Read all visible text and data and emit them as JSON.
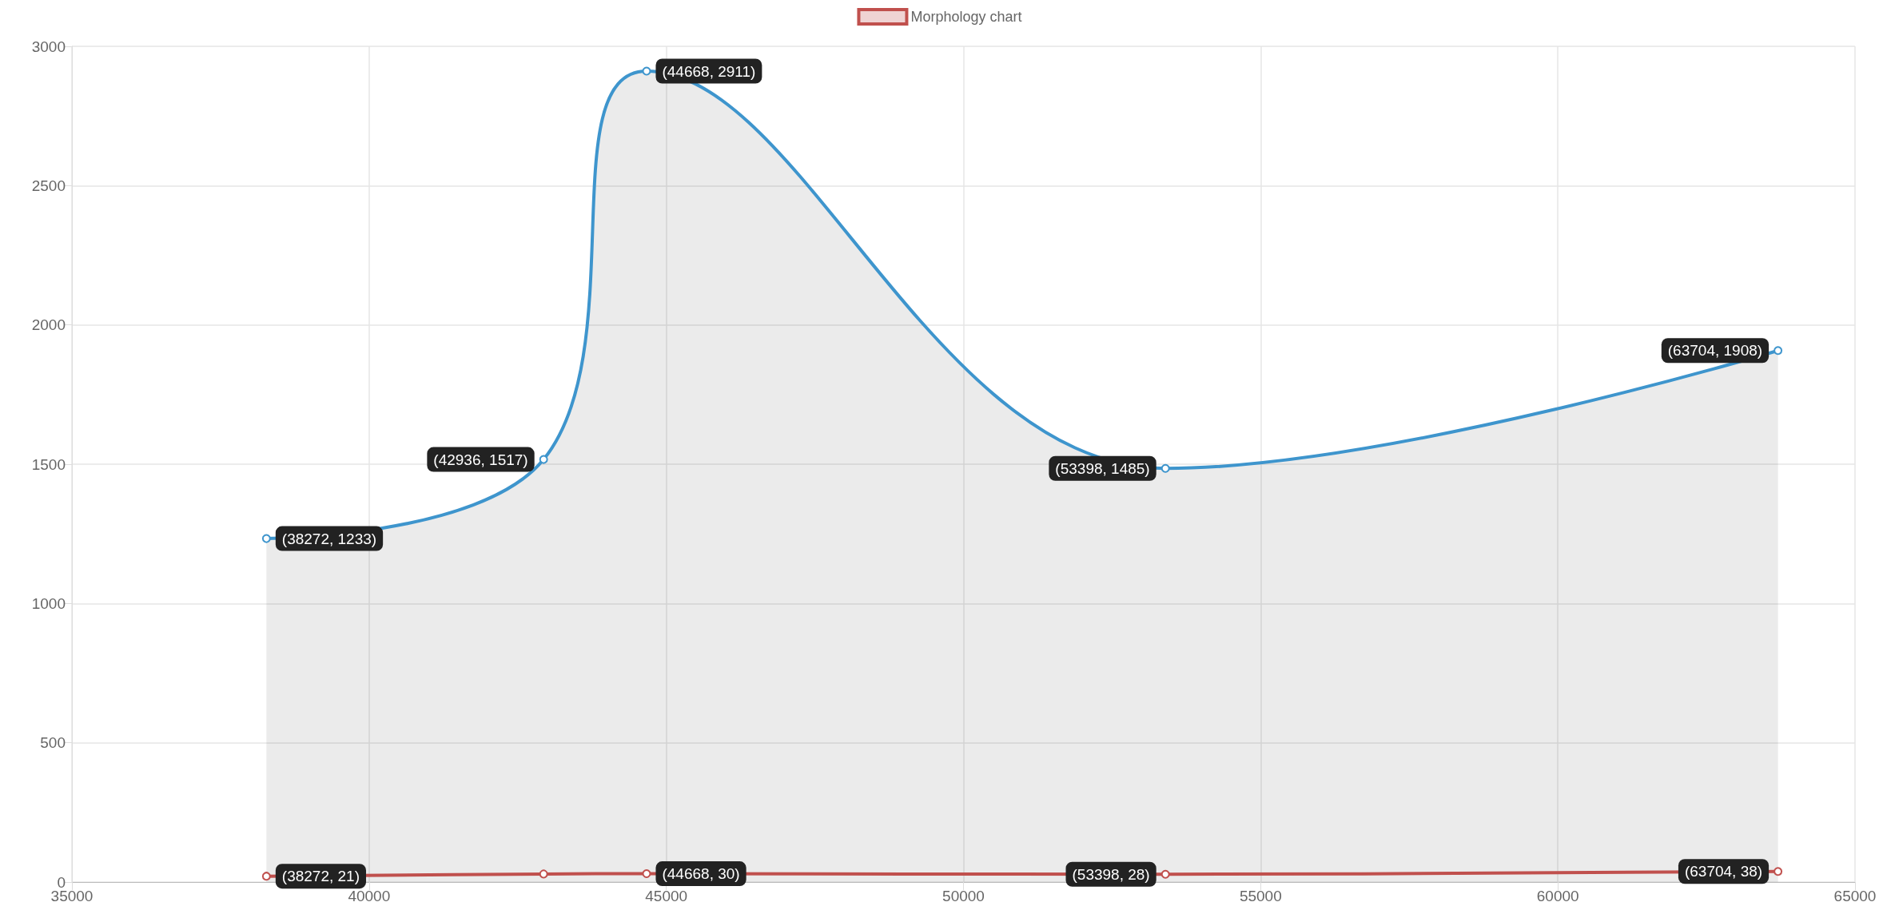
{
  "chart_data": {
    "type": "line",
    "x": [
      38272,
      42936,
      44668,
      53398,
      63704
    ],
    "series": [
      {
        "type": "area",
        "color": "#3e95cd",
        "values": [
          1233,
          1517,
          2911,
          1485,
          1908
        ],
        "value_labels": [
          "(38272, 1233)",
          "(42936, 1517)",
          "(44668, 2911)",
          "(53398, 1485)",
          "(63704, 1908)"
        ]
      },
      {
        "name": "Morphology chart",
        "color": "#c0504d",
        "values": [
          21,
          29,
          30,
          28,
          38
        ],
        "value_labels": [
          "(38272, 21)",
          null,
          "(44668, 30)",
          "(53398, 28)",
          "(63704, 38)"
        ]
      }
    ],
    "xlim": [
      35000,
      65000
    ],
    "xticks": [
      35000,
      40000,
      45000,
      50000,
      55000,
      60000,
      65000
    ],
    "ylim": [
      0,
      3000
    ],
    "yticks": [
      0,
      500,
      1000,
      1500,
      2000,
      2500,
      3000
    ],
    "grid": true,
    "legend": "top",
    "marker": "circle",
    "line_style": "solid"
  }
}
